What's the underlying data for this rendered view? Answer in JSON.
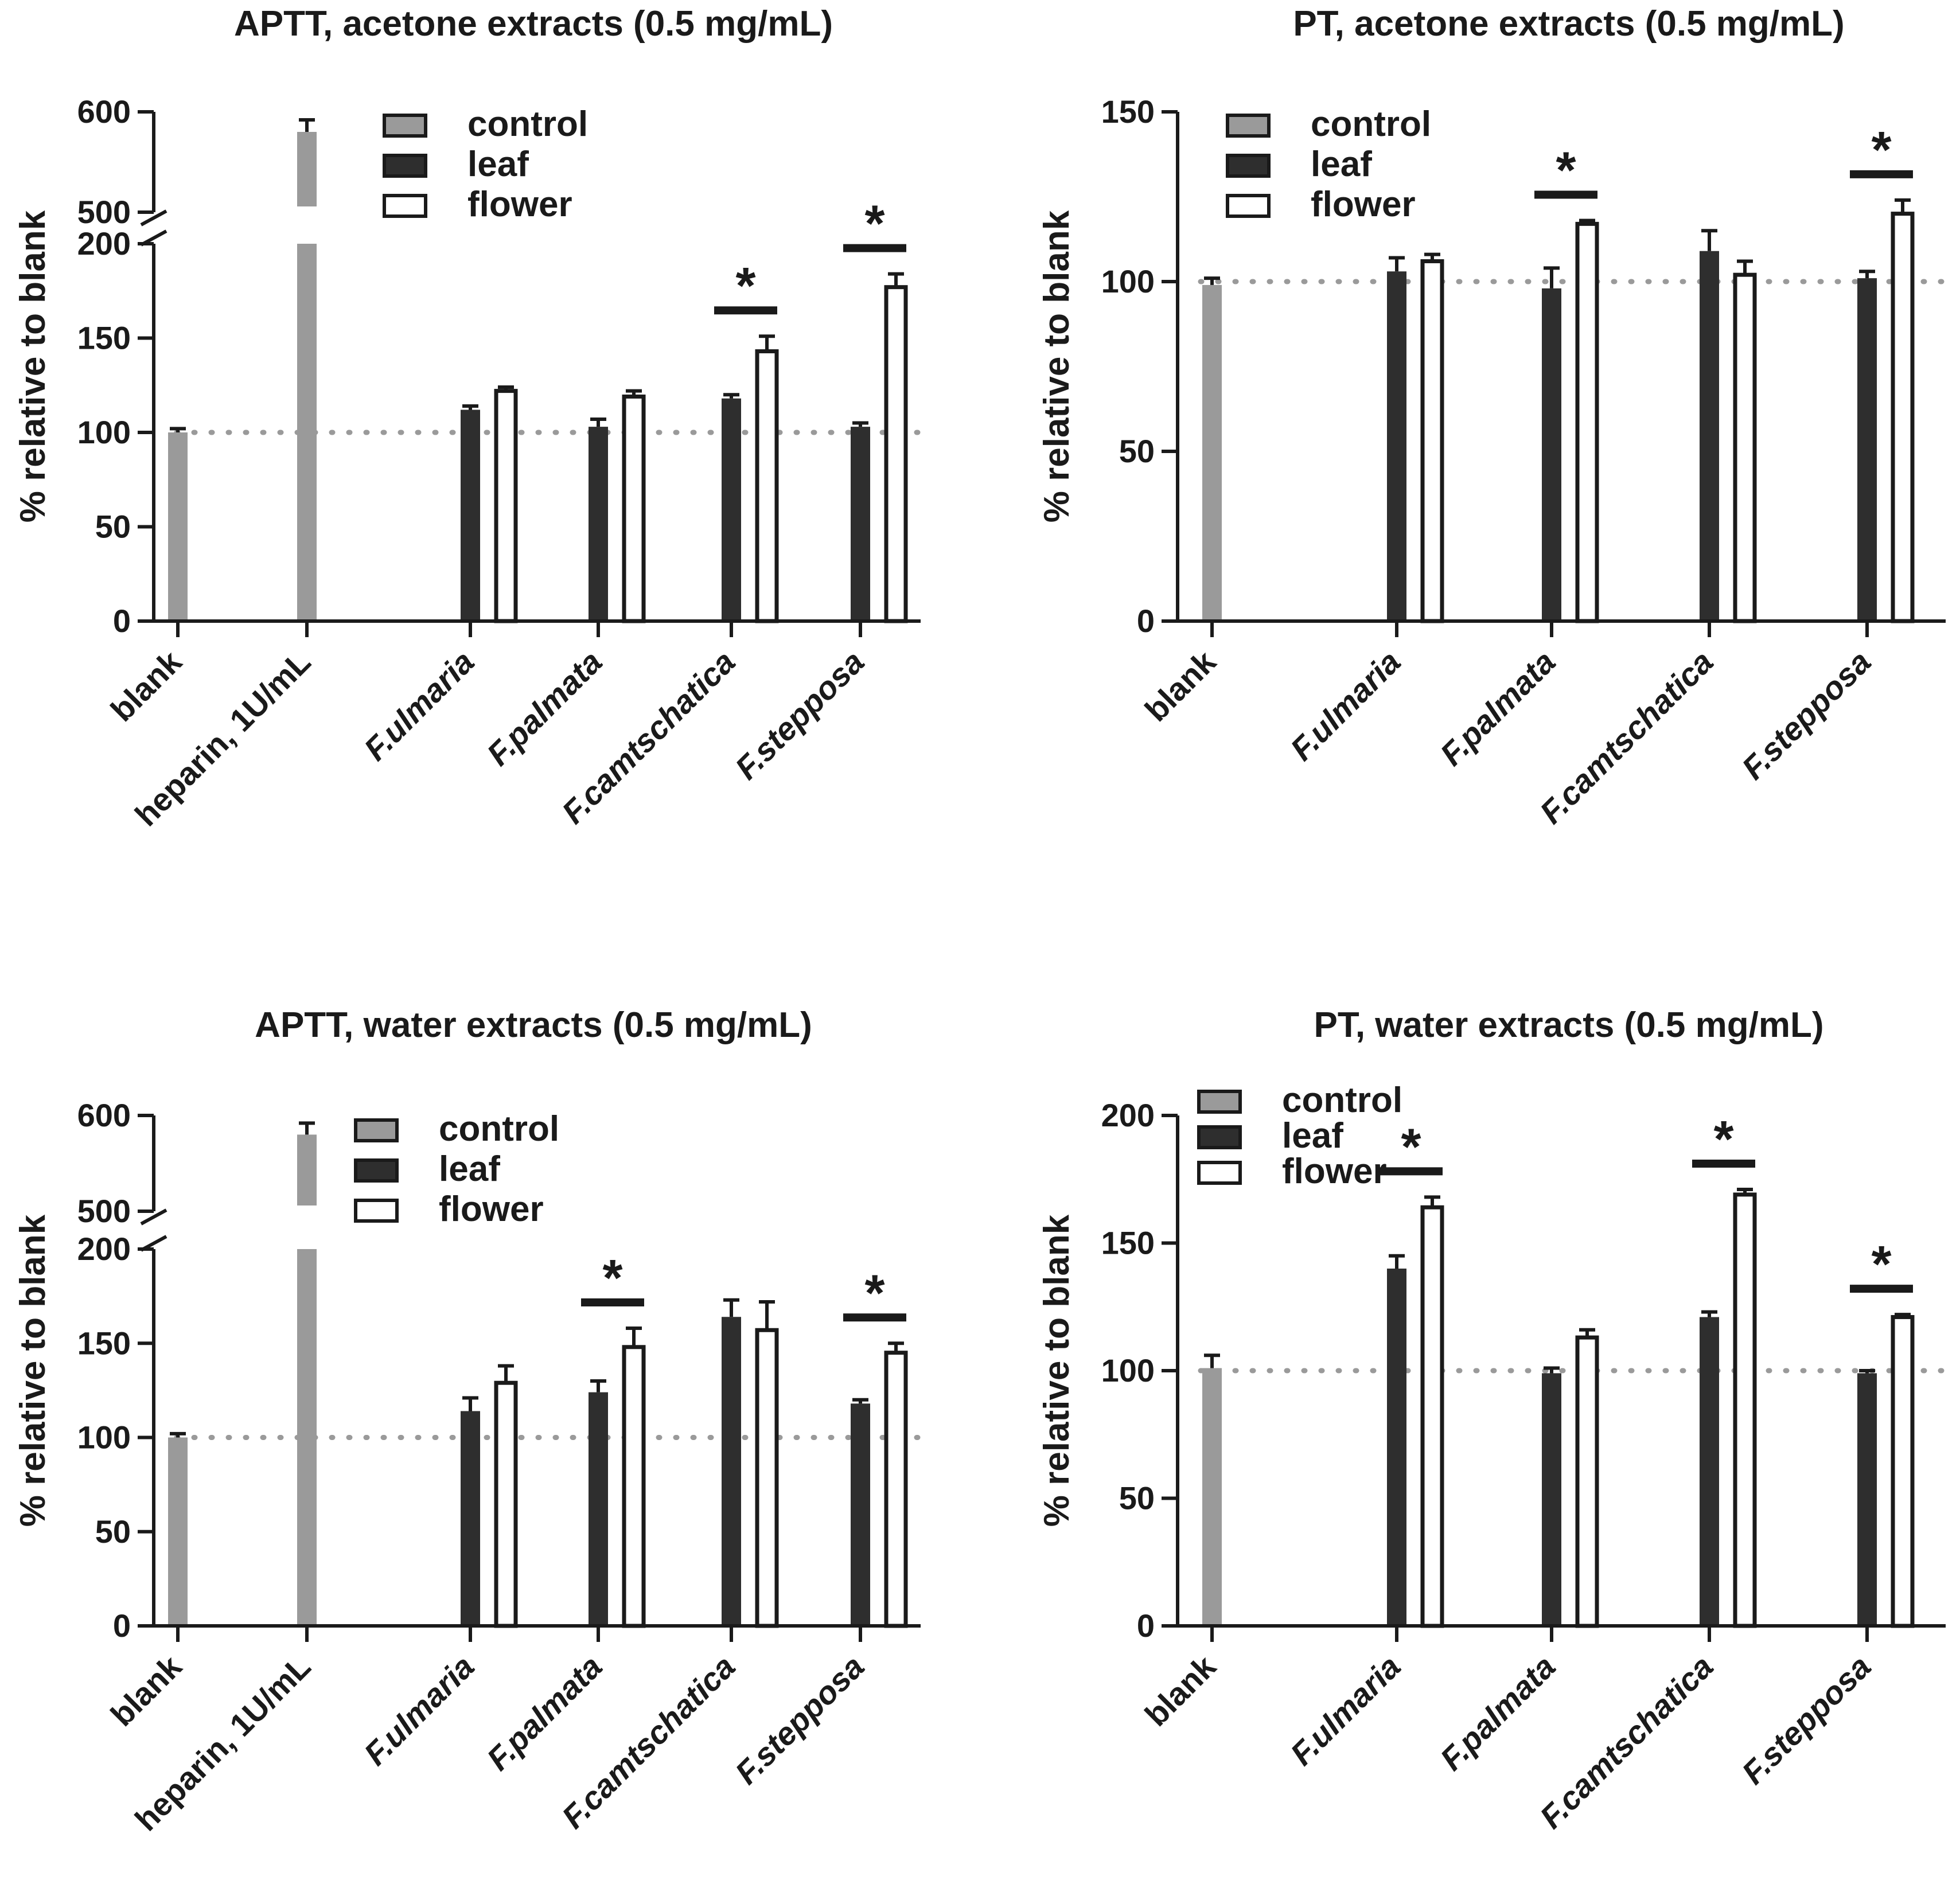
{
  "colors": {
    "control": "#9a9a9a",
    "leaf": "#2e2e2e",
    "flower": "#ffffff",
    "axis": "#1a1a1a",
    "reference_line": "#9a9a9a"
  },
  "chart_data": [
    {
      "type": "bar",
      "title": "APTT, acetone extracts (0.5 mg/mL)",
      "ylabel": "% relative to blank",
      "xlabel": "",
      "ylim": [
        0,
        600
      ],
      "axis_break": {
        "lower": [
          0,
          200
        ],
        "upper": [
          500,
          600
        ]
      },
      "yticks": [
        "0",
        "50",
        "100",
        "150",
        "200",
        "500",
        "600"
      ],
      "reference_line": 100,
      "grid": false,
      "legend_position": "top-center",
      "legend": [
        "control",
        "leaf",
        "flower"
      ],
      "categories": [
        "blank",
        "heparin, 1U/mL",
        "F.ulmaria",
        "F.palmata",
        "F.camtschatica",
        "F.stepposa"
      ],
      "series": [
        {
          "name": "control",
          "values": [
            100,
            580,
            null,
            null,
            null,
            null
          ],
          "errors": [
            2,
            12,
            null,
            null,
            null,
            null
          ]
        },
        {
          "name": "leaf",
          "values": [
            null,
            null,
            112,
            103,
            118,
            103
          ],
          "errors": [
            null,
            null,
            2,
            4,
            2,
            2
          ]
        },
        {
          "name": "flower",
          "values": [
            null,
            null,
            122,
            119,
            143,
            177
          ],
          "errors": [
            null,
            null,
            2,
            3,
            8,
            7
          ]
        }
      ],
      "significance": [
        {
          "category": "F.camtschatica",
          "label": "*"
        },
        {
          "category": "F.stepposa",
          "label": "*"
        }
      ]
    },
    {
      "type": "bar",
      "title": "PT, acetone extracts (0.5 mg/mL)",
      "ylabel": "% relative to blank",
      "xlabel": "",
      "ylim": [
        0,
        150
      ],
      "yticks": [
        "0",
        "50",
        "100",
        "150"
      ],
      "reference_line": 100,
      "grid": false,
      "legend_position": "top-left",
      "legend": [
        "control",
        "leaf",
        "flower"
      ],
      "categories": [
        "blank",
        "F.ulmaria",
        "F.palmata",
        "F.camtschatica",
        "F.stepposa"
      ],
      "series": [
        {
          "name": "control",
          "values": [
            99,
            null,
            null,
            null,
            null
          ],
          "errors": [
            2,
            null,
            null,
            null,
            null
          ]
        },
        {
          "name": "leaf",
          "values": [
            null,
            103,
            98,
            109,
            101
          ],
          "errors": [
            null,
            4,
            6,
            6,
            2
          ]
        },
        {
          "name": "flower",
          "values": [
            null,
            106,
            117,
            102,
            120
          ],
          "errors": [
            null,
            2,
            1,
            4,
            4
          ]
        }
      ],
      "significance": [
        {
          "category": "F.palmata",
          "label": "*"
        },
        {
          "category": "F.stepposa",
          "label": "*"
        }
      ]
    },
    {
      "type": "bar",
      "title": "APTT, water extracts (0.5 mg/mL)",
      "ylabel": "% relative to blank",
      "xlabel": "",
      "ylim": [
        0,
        600
      ],
      "axis_break": {
        "lower": [
          0,
          200
        ],
        "upper": [
          500,
          600
        ]
      },
      "yticks": [
        "0",
        "50",
        "100",
        "150",
        "200",
        "500",
        "600"
      ],
      "reference_line": 100,
      "grid": false,
      "legend_position": "top-center",
      "legend": [
        "control",
        "leaf",
        "flower"
      ],
      "categories": [
        "blank",
        "heparin, 1U/mL",
        "F.ulmaria",
        "F.palmata",
        "F.camtschatica",
        "F.stepposa"
      ],
      "series": [
        {
          "name": "control",
          "values": [
            100,
            580,
            null,
            null,
            null,
            null
          ],
          "errors": [
            2,
            12,
            null,
            null,
            null,
            null
          ]
        },
        {
          "name": "leaf",
          "values": [
            null,
            null,
            114,
            124,
            164,
            118
          ],
          "errors": [
            null,
            null,
            7,
            6,
            9,
            2
          ]
        },
        {
          "name": "flower",
          "values": [
            null,
            null,
            129,
            148,
            157,
            145
          ],
          "errors": [
            null,
            null,
            9,
            10,
            15,
            5
          ]
        }
      ],
      "significance": [
        {
          "category": "F.palmata",
          "label": "*"
        },
        {
          "category": "F.stepposa",
          "label": "*"
        }
      ]
    },
    {
      "type": "bar",
      "title": "PT, water extracts (0.5 mg/mL)",
      "ylabel": "% relative to blank",
      "xlabel": "",
      "ylim": [
        0,
        200
      ],
      "yticks": [
        "0",
        "50",
        "100",
        "150",
        "200"
      ],
      "reference_line": 100,
      "grid": false,
      "legend_position": "top-left",
      "legend": [
        "control",
        "leaf",
        "flower"
      ],
      "categories": [
        "blank",
        "F.ulmaria",
        "F.palmata",
        "F.camtschatica",
        "F.stepposa"
      ],
      "series": [
        {
          "name": "control",
          "values": [
            101,
            null,
            null,
            null,
            null
          ],
          "errors": [
            5,
            null,
            null,
            null,
            null
          ]
        },
        {
          "name": "leaf",
          "values": [
            null,
            140,
            99,
            121,
            99
          ],
          "errors": [
            null,
            5,
            2,
            2,
            1
          ]
        },
        {
          "name": "flower",
          "values": [
            null,
            164,
            113,
            169,
            121
          ],
          "errors": [
            null,
            4,
            3,
            2,
            1
          ]
        }
      ],
      "significance": [
        {
          "category": "F.ulmaria",
          "label": "*"
        },
        {
          "category": "F.camtschatica",
          "label": "*"
        },
        {
          "category": "F.stepposa",
          "label": "*"
        }
      ]
    }
  ]
}
